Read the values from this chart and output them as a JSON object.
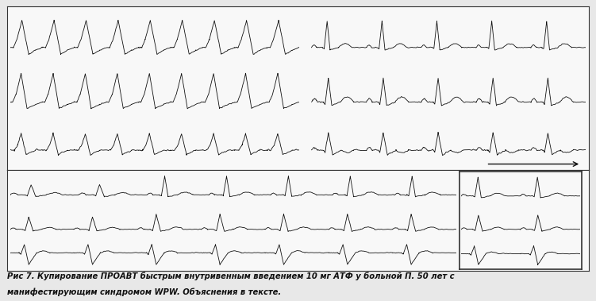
{
  "caption_line1": "Рис 7. Купирование ПРОАВТ быстрым внутривенным введением 10 мг АТФ у больной П. 50 лет с",
  "caption_line2": "манифестирующим синдромом WPW. Объяснения в тексте.",
  "bg_color": "#e8e8e8",
  "ecg_color": "#111111",
  "panel_bg": "#f8f8f8",
  "border_color": "#333333",
  "lw": 0.6
}
